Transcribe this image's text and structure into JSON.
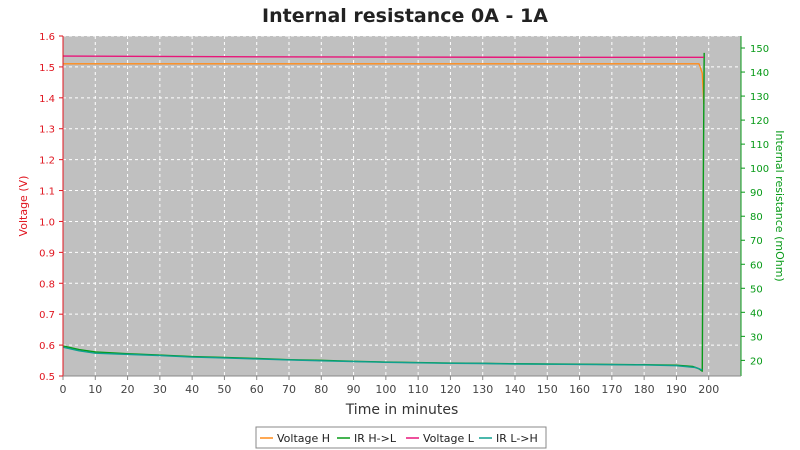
{
  "chart_data": {
    "type": "line",
    "title": "Internal resistance  0A - 1A",
    "xlabel": "Time in minutes",
    "ylabel_left": "Voltage (V)",
    "ylabel_right": "Internal resistance (mOhm)",
    "xlim": [
      0,
      210
    ],
    "ylim_left": [
      0.5,
      1.6
    ],
    "ylim_right": [
      13.5,
      155
    ],
    "x_ticks": [
      0,
      10,
      20,
      30,
      40,
      50,
      60,
      70,
      80,
      90,
      100,
      110,
      120,
      130,
      140,
      150,
      160,
      170,
      180,
      190,
      200
    ],
    "y_left_ticks": [
      "0.5",
      "0.6",
      "0.7",
      "0.8",
      "0.9",
      "1.0",
      "1.1",
      "1.2",
      "1.3",
      "1.4",
      "1.5",
      "1.6"
    ],
    "y_right_ticks": [
      20,
      30,
      40,
      50,
      60,
      70,
      80,
      90,
      100,
      110,
      120,
      130,
      140,
      150
    ],
    "grid": true,
    "legend_position": "bottom-center",
    "plot_background": "#c0c0c0",
    "series": [
      {
        "name": "Voltage H",
        "axis": "left",
        "color": "#ff8c1a",
        "points": [
          [
            0,
            1.51
          ],
          [
            50,
            1.51
          ],
          [
            100,
            1.51
          ],
          [
            150,
            1.51
          ],
          [
            197,
            1.51
          ],
          [
            198,
            1.48
          ],
          [
            198.5,
            1.38
          ]
        ]
      },
      {
        "name": "IR H->L",
        "axis": "right",
        "color": "#079a17",
        "points": [
          [
            0,
            26
          ],
          [
            5,
            24.5
          ],
          [
            10,
            23.5
          ],
          [
            20,
            22.8
          ],
          [
            30,
            22.2
          ],
          [
            40,
            21.6
          ],
          [
            50,
            21.2
          ],
          [
            60,
            20.8
          ],
          [
            70,
            20.3
          ],
          [
            80,
            20
          ],
          [
            90,
            19.6
          ],
          [
            100,
            19.3
          ],
          [
            110,
            19.1
          ],
          [
            120,
            18.9
          ],
          [
            130,
            18.8
          ],
          [
            140,
            18.6
          ],
          [
            150,
            18.5
          ],
          [
            160,
            18.4
          ],
          [
            170,
            18.3
          ],
          [
            180,
            18.2
          ],
          [
            190,
            18
          ],
          [
            195,
            17.5
          ],
          [
            197,
            16.5
          ],
          [
            198,
            15.5
          ],
          [
            198.3,
            90
          ],
          [
            198.6,
            148
          ]
        ]
      },
      {
        "name": "Voltage L",
        "axis": "left",
        "color": "#e8167a",
        "points": [
          [
            0,
            1.535
          ],
          [
            50,
            1.533
          ],
          [
            100,
            1.532
          ],
          [
            150,
            1.531
          ],
          [
            190,
            1.531
          ],
          [
            198.5,
            1.531
          ]
        ]
      },
      {
        "name": "IR L->H",
        "axis": "right",
        "color": "#0fa090",
        "points": [
          [
            0,
            25.5
          ],
          [
            5,
            24
          ],
          [
            10,
            23
          ],
          [
            20,
            22.5
          ],
          [
            30,
            22
          ],
          [
            40,
            21.4
          ],
          [
            50,
            21
          ],
          [
            60,
            20.6
          ],
          [
            70,
            20.2
          ],
          [
            80,
            19.8
          ],
          [
            90,
            19.5
          ],
          [
            100,
            19.2
          ],
          [
            110,
            19
          ],
          [
            120,
            18.8
          ],
          [
            130,
            18.7
          ],
          [
            140,
            18.5
          ],
          [
            150,
            18.4
          ],
          [
            160,
            18.3
          ],
          [
            170,
            18.2
          ],
          [
            180,
            18.1
          ],
          [
            190,
            17.8
          ],
          [
            196,
            17
          ],
          [
            198,
            16
          ]
        ]
      }
    ]
  }
}
